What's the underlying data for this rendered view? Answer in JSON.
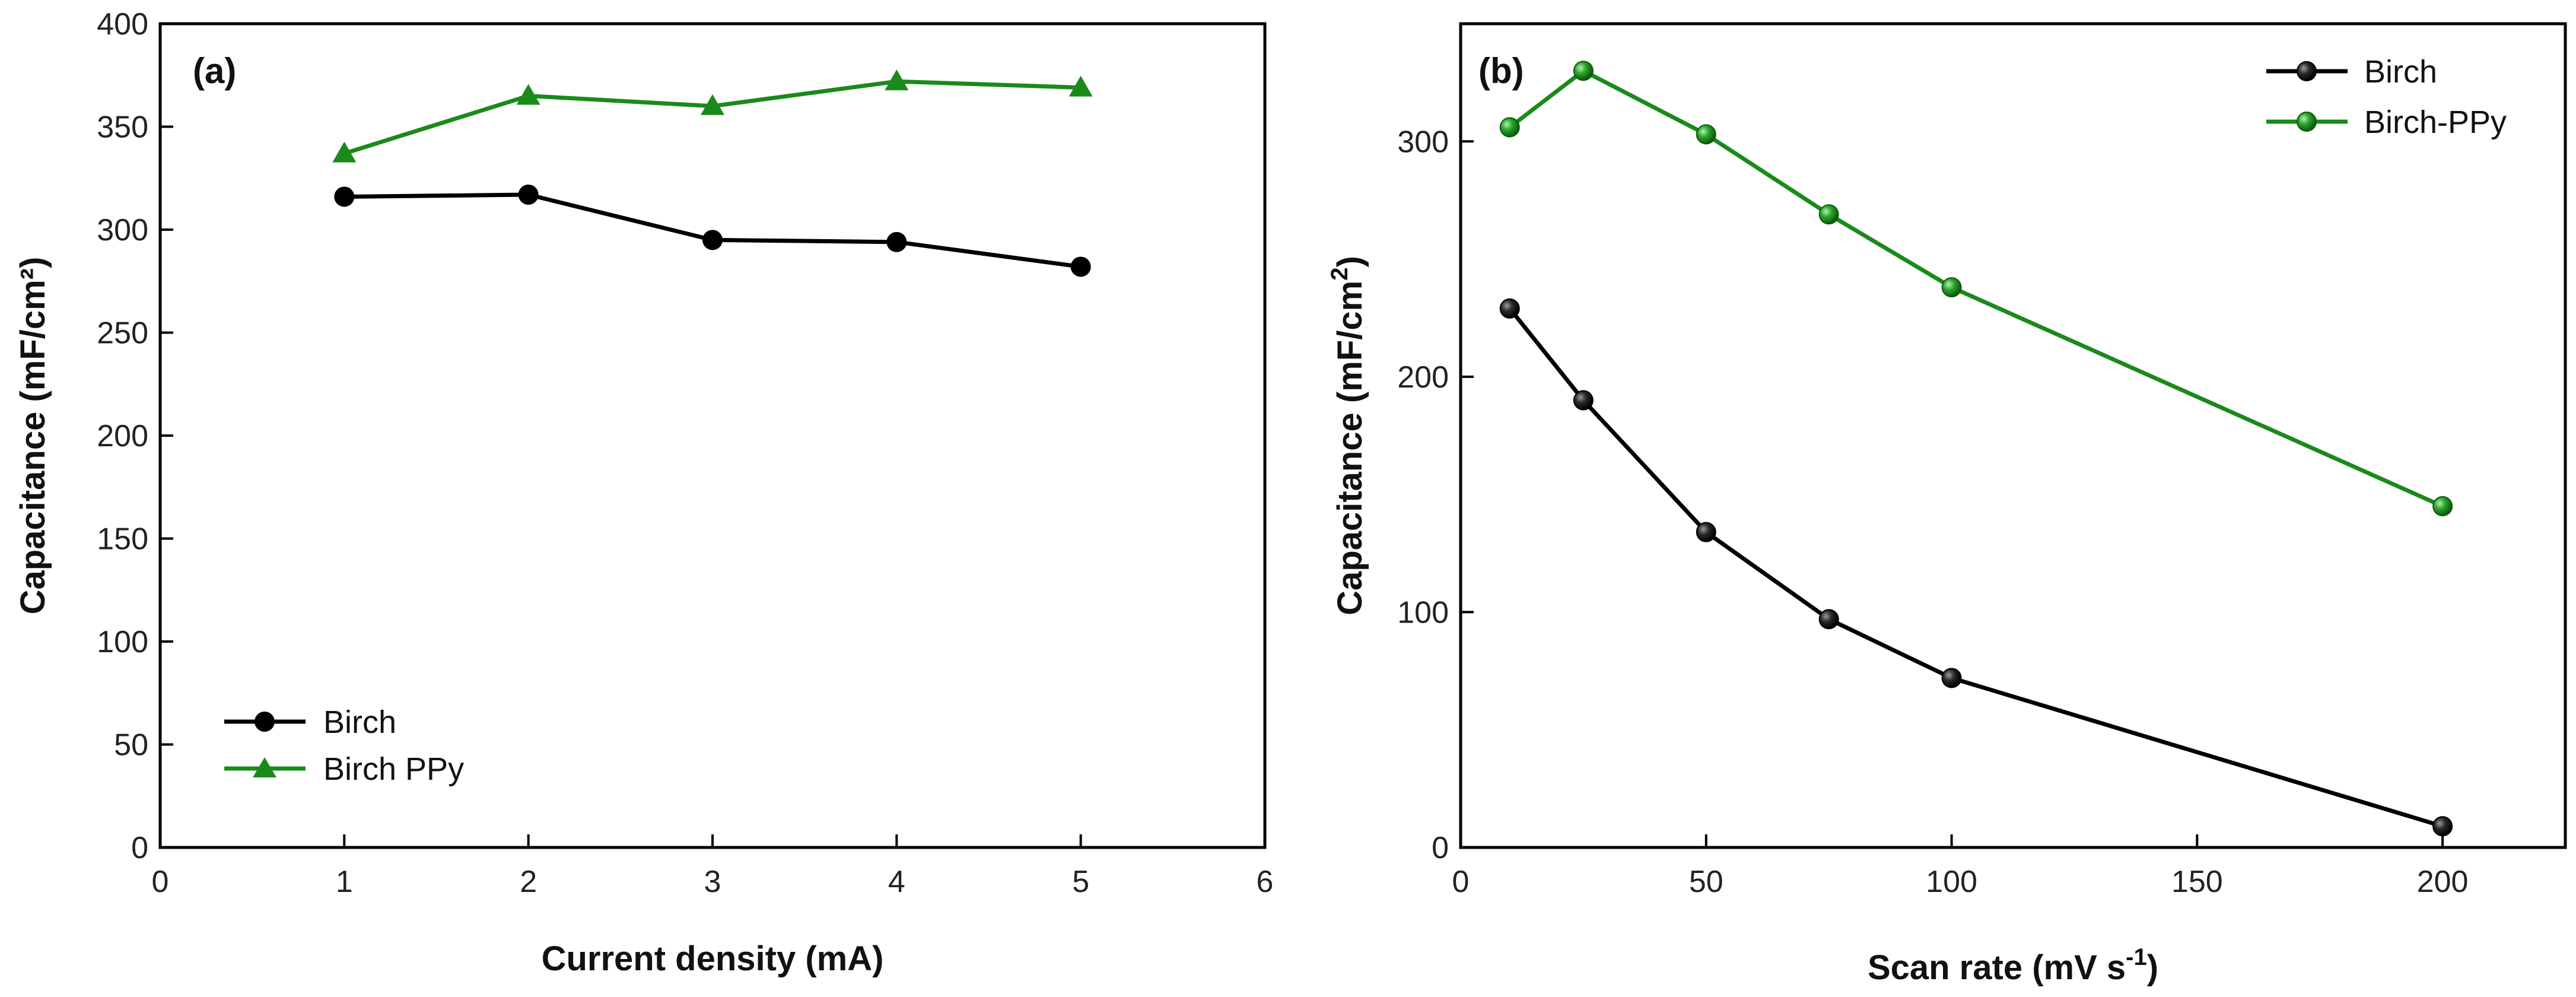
{
  "chart_data": [
    {
      "panel": "(a)",
      "type": "line",
      "xlabel": "Current density (mA)",
      "ylabel": "Capacitance (mF/cm²)",
      "xlim": [
        0,
        6
      ],
      "ylim": [
        0,
        400
      ],
      "x_ticks": [
        0,
        1,
        2,
        3,
        4,
        5,
        6
      ],
      "y_ticks": [
        0,
        50,
        100,
        150,
        200,
        250,
        300,
        350,
        400
      ],
      "grid": false,
      "legend_position": "bottom-left",
      "series": [
        {
          "name": "Birch",
          "color": "#000000",
          "marker": "circle",
          "x": [
            1,
            2,
            3,
            4,
            5
          ],
          "y": [
            316,
            317,
            295,
            294,
            282
          ]
        },
        {
          "name": "Birch PPy",
          "color": "#1a8a1a",
          "marker": "triangle",
          "x": [
            1,
            2,
            3,
            4,
            5
          ],
          "y": [
            337,
            365,
            360,
            372,
            369
          ]
        }
      ]
    },
    {
      "panel": "(b)",
      "type": "line",
      "xlabel": "Scan rate (mV s",
      "xlabel_sup": "-1",
      "xlabel_end": ")",
      "ylabel": "Capacitance (mF/cm",
      "ylabel_sup": "2",
      "ylabel_end": ")",
      "xlim": [
        0,
        225
      ],
      "ylim": [
        0,
        350
      ],
      "x_ticks": [
        0,
        50,
        100,
        150,
        200
      ],
      "y_ticks": [
        0,
        100,
        200,
        300
      ],
      "grid": false,
      "legend_position": "top-right",
      "series": [
        {
          "name": "Birch",
          "color": "#000000",
          "marker": "sphere",
          "x": [
            10,
            25,
            50,
            75,
            100,
            200
          ],
          "y": [
            229,
            190,
            134,
            97,
            72,
            9
          ]
        },
        {
          "name": "Birch-PPy",
          "color": "#1a8a1a",
          "marker": "sphere",
          "x": [
            10,
            25,
            50,
            75,
            100,
            200
          ],
          "y": [
            306,
            330,
            303,
            269,
            238,
            145
          ]
        }
      ]
    }
  ]
}
